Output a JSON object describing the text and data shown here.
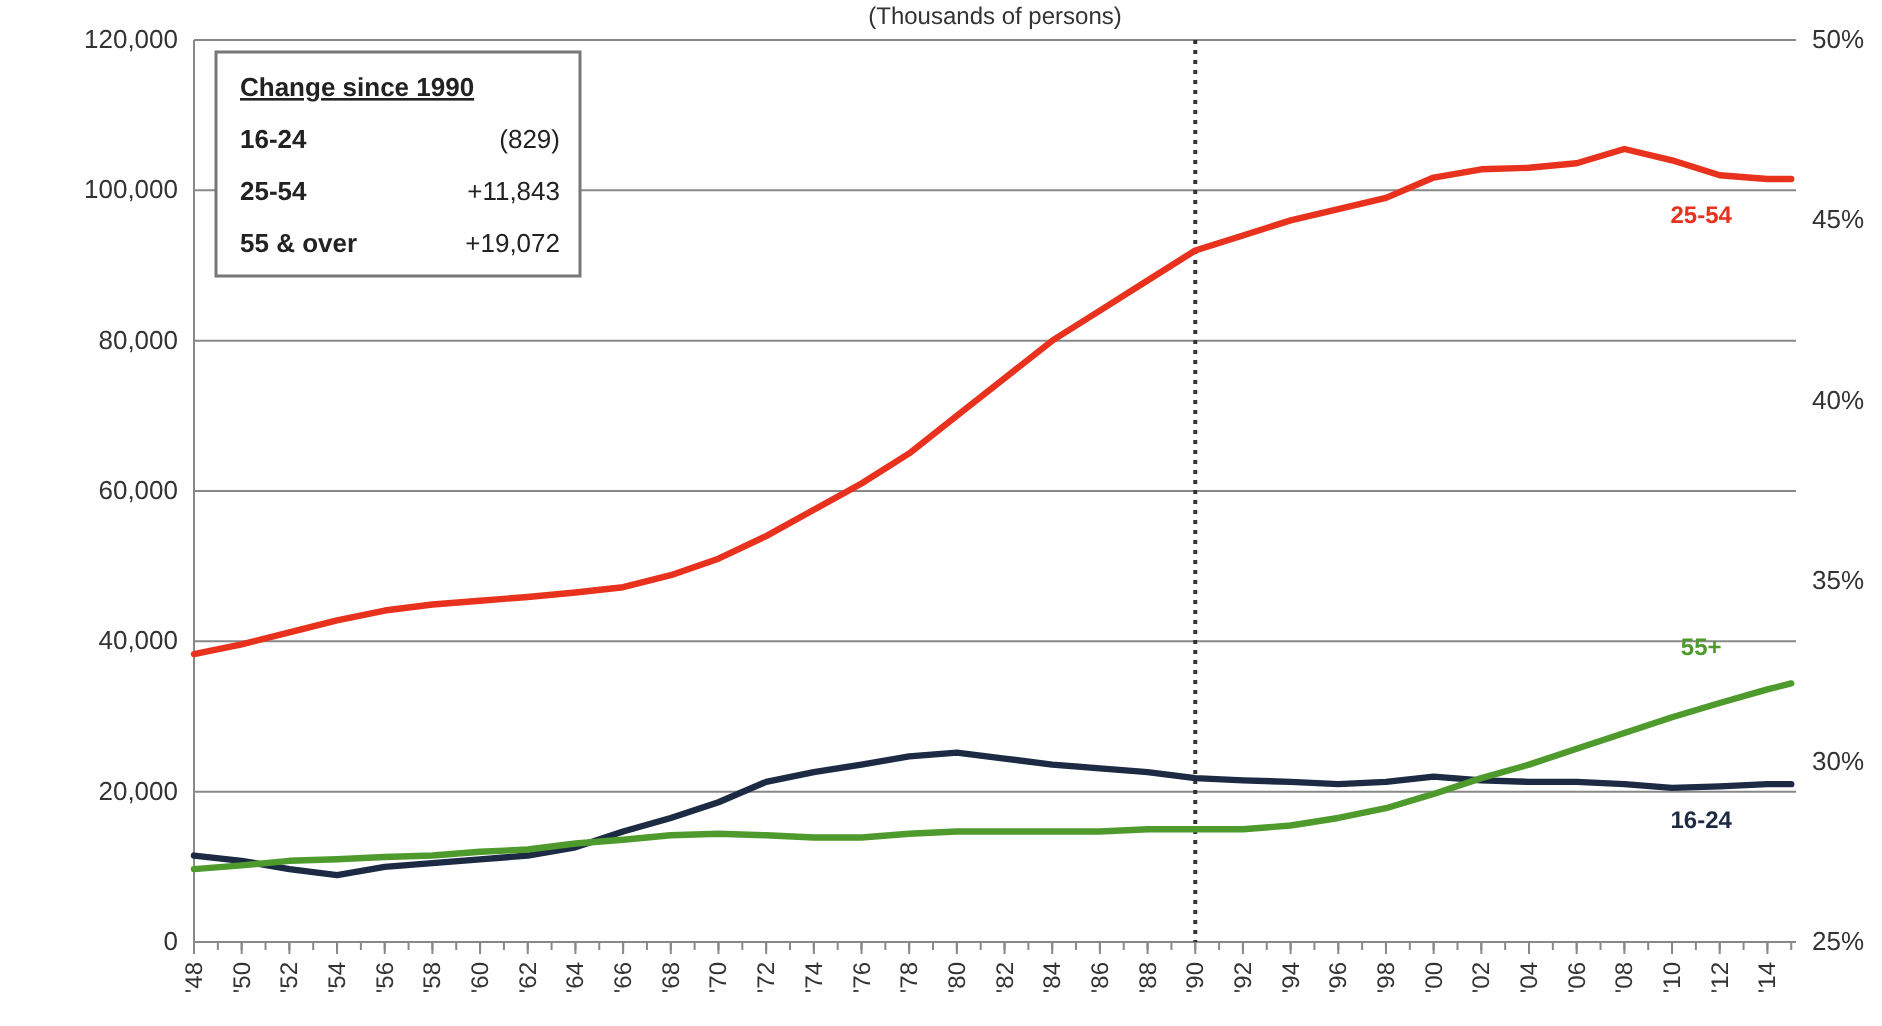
{
  "chart_data": {
    "type": "line",
    "subtitle": "(Thousands of persons)",
    "x": [
      1948,
      1950,
      1952,
      1954,
      1956,
      1958,
      1960,
      1962,
      1964,
      1966,
      1968,
      1970,
      1972,
      1974,
      1976,
      1978,
      1980,
      1982,
      1984,
      1986,
      1988,
      1990,
      1992,
      1994,
      1996,
      1998,
      2000,
      2002,
      2004,
      2006,
      2008,
      2010,
      2012,
      2014,
      2015
    ],
    "series": [
      {
        "name": "25-54",
        "color": "#e8321e",
        "values": [
          38300,
          39600,
          41200,
          42800,
          44100,
          44900,
          45400,
          45900,
          46500,
          47200,
          48800,
          51000,
          54000,
          57500,
          61000,
          65000,
          70000,
          75000,
          80000,
          84000,
          88000,
          92000,
          94000,
          96000,
          97500,
          99000,
          101700,
          102800,
          103000,
          103600,
          105500,
          104000,
          102000,
          101500,
          101500
        ]
      },
      {
        "name": "16-24",
        "color": "#1c2a44",
        "values": [
          11500,
          10800,
          9700,
          8900,
          10000,
          10500,
          11000,
          11500,
          12600,
          14700,
          16500,
          18600,
          21300,
          22600,
          23600,
          24700,
          25200,
          24400,
          23600,
          23100,
          22600,
          21800,
          21500,
          21300,
          21000,
          21300,
          22000,
          21500,
          21300,
          21300,
          21000,
          20500,
          20700,
          21000,
          21000
        ]
      },
      {
        "name": "55+",
        "color": "#4f9a2c",
        "values": [
          9700,
          10200,
          10800,
          11000,
          11300,
          11500,
          12000,
          12300,
          13100,
          13600,
          14200,
          14400,
          14200,
          13900,
          13900,
          14400,
          14700,
          14700,
          14700,
          14700,
          15000,
          15000,
          15000,
          15500,
          16500,
          17800,
          19700,
          21800,
          23600,
          25700,
          27800,
          29900,
          31800,
          33600,
          34400
        ]
      }
    ],
    "xlim": [
      1948,
      2015.2
    ],
    "xticks": [
      {
        "value": 1948,
        "label": "'48"
      },
      {
        "value": 1950,
        "label": "'50"
      },
      {
        "value": 1952,
        "label": "'52"
      },
      {
        "value": 1954,
        "label": "'54"
      },
      {
        "value": 1956,
        "label": "'56"
      },
      {
        "value": 1958,
        "label": "'58"
      },
      {
        "value": 1960,
        "label": "'60"
      },
      {
        "value": 1962,
        "label": "'62"
      },
      {
        "value": 1964,
        "label": "'64"
      },
      {
        "value": 1966,
        "label": "'66"
      },
      {
        "value": 1968,
        "label": "'68"
      },
      {
        "value": 1970,
        "label": "'70"
      },
      {
        "value": 1972,
        "label": "'72"
      },
      {
        "value": 1974,
        "label": "'74"
      },
      {
        "value": 1976,
        "label": "'76"
      },
      {
        "value": 1978,
        "label": "'78"
      },
      {
        "value": 1980,
        "label": "'80"
      },
      {
        "value": 1982,
        "label": "'82"
      },
      {
        "value": 1984,
        "label": "'84"
      },
      {
        "value": 1986,
        "label": "'86"
      },
      {
        "value": 1988,
        "label": "'88"
      },
      {
        "value": 1990,
        "label": "'90"
      },
      {
        "value": 1992,
        "label": "'92"
      },
      {
        "value": 1994,
        "label": "'94"
      },
      {
        "value": 1996,
        "label": "'96"
      },
      {
        "value": 1998,
        "label": "'98"
      },
      {
        "value": 2000,
        "label": "'00"
      },
      {
        "value": 2002,
        "label": "'02"
      },
      {
        "value": 2004,
        "label": "'04"
      },
      {
        "value": 2006,
        "label": "'06"
      },
      {
        "value": 2008,
        "label": "'08"
      },
      {
        "value": 2010,
        "label": "'10"
      },
      {
        "value": 2012,
        "label": "'12"
      },
      {
        "value": 2014,
        "label": "'14"
      }
    ],
    "ylim": [
      0,
      120000
    ],
    "yticks": [
      {
        "value": 0,
        "label": "0"
      },
      {
        "value": 20000,
        "label": "20,000"
      },
      {
        "value": 40000,
        "label": "40,000"
      },
      {
        "value": 60000,
        "label": "60,000"
      },
      {
        "value": 80000,
        "label": "80,000"
      },
      {
        "value": 100000,
        "label": "100,000"
      },
      {
        "value": 120000,
        "label": "120,000"
      }
    ],
    "y2lim": [
      25,
      50
    ],
    "y2ticks": [
      {
        "value": 25,
        "label": "25%"
      },
      {
        "value": 30,
        "label": "30%"
      },
      {
        "value": 35,
        "label": "35%"
      },
      {
        "value": 40,
        "label": "40%"
      },
      {
        "value": 45,
        "label": "45%"
      },
      {
        "value": 50,
        "label": "50%"
      }
    ],
    "grid": "y",
    "marker": "none",
    "line_style": "solid",
    "ref_lines": [
      {
        "axis": "x",
        "value": 1990,
        "line_style": "dotted",
        "color": "#333333"
      }
    ],
    "annotations": [
      "Change since 1990",
      "16-24",
      "(829)",
      "25-54",
      "+11,843",
      "55 & over",
      "+19,072"
    ]
  }
}
